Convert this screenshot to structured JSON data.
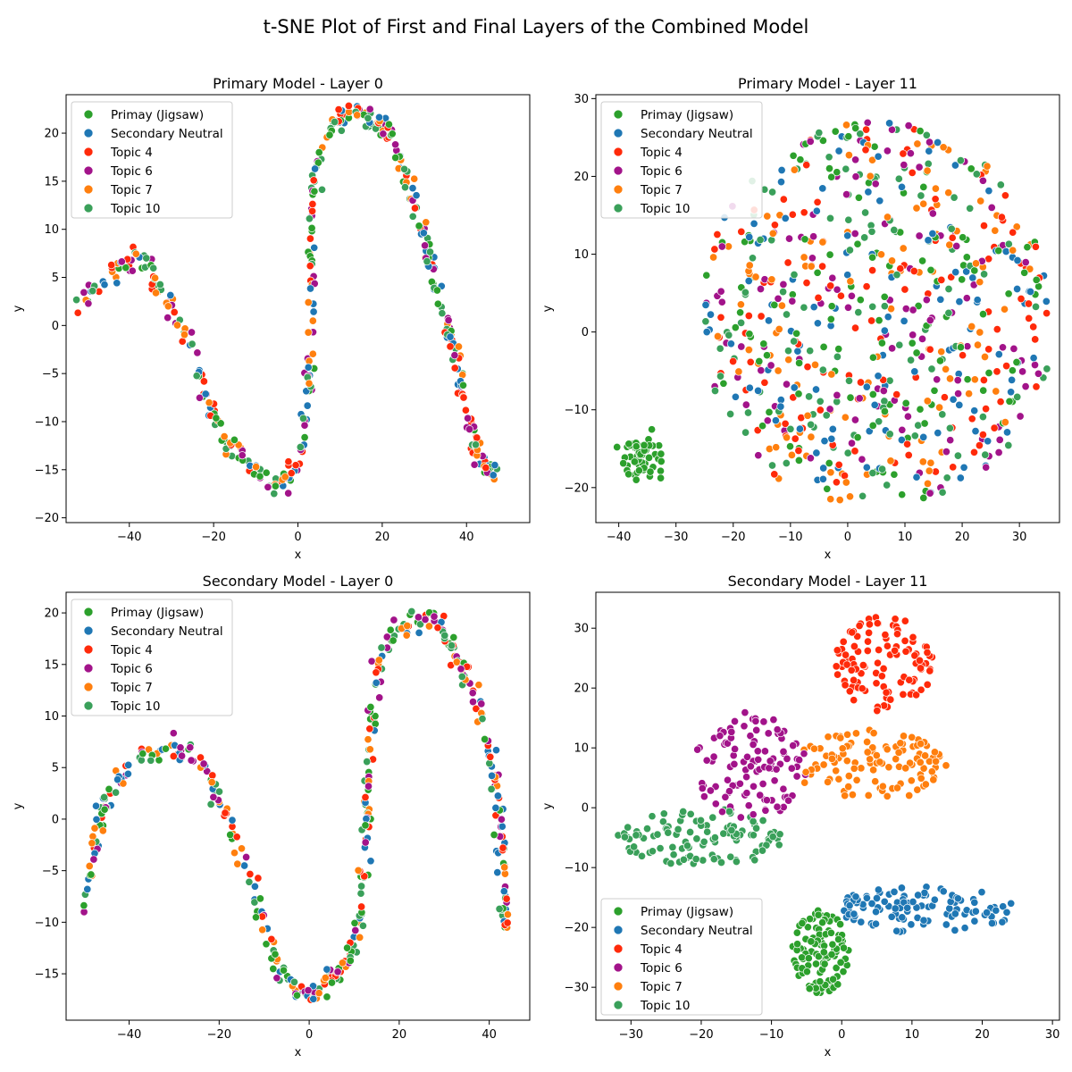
{
  "figure": {
    "title": "t-SNE Plot of First and Final Layers of the Combined Model"
  },
  "legend_entries": [
    {
      "name": "Primay (Jigsaw)",
      "color": "#2ca02c"
    },
    {
      "name": "Secondary Neutral",
      "color": "#1f77b4"
    },
    {
      "name": "Topic 4",
      "color": "#ff2a0a"
    },
    {
      "name": "Topic 6",
      "color": "#a2138a"
    },
    {
      "name": "Topic 7",
      "color": "#ff7f0e"
    },
    {
      "name": "Topic 10",
      "color": "#3aa05a"
    }
  ],
  "chart_data": [
    {
      "type": "scatter",
      "title": "Primary Model - Layer 0",
      "xlabel": "x",
      "ylabel": "y",
      "xlim": [
        -55,
        55
      ],
      "ylim": [
        -20.5,
        24
      ],
      "xticks": [
        -40,
        -20,
        0,
        20,
        40
      ],
      "yticks": [
        -20,
        -15,
        -10,
        -5,
        0,
        5,
        10,
        15,
        20
      ],
      "legend_position": "upper-left",
      "curve": [
        [
          -52,
          2.5
        ],
        [
          -46,
          4.5
        ],
        [
          -41,
          6.5
        ],
        [
          -38,
          7.3
        ],
        [
          -35,
          5.8
        ],
        [
          -32,
          3.5
        ],
        [
          -29,
          1
        ],
        [
          -26,
          -1.5
        ],
        [
          -23,
          -6
        ],
        [
          -20,
          -9.5
        ],
        [
          -17,
          -12
        ],
        [
          -14,
          -13.5
        ],
        [
          -10,
          -15
        ],
        [
          -6,
          -16.2
        ],
        [
          -3,
          -16
        ],
        [
          0,
          -14.5
        ],
        [
          1.5,
          -11
        ],
        [
          2.5,
          -6
        ],
        [
          3,
          0
        ],
        [
          3.3,
          6
        ],
        [
          3.5,
          12
        ],
        [
          4.5,
          16
        ],
        [
          6.5,
          19.5
        ],
        [
          10,
          21.3
        ],
        [
          14,
          22.2
        ],
        [
          18,
          21.5
        ],
        [
          21,
          20.3
        ],
        [
          23.5,
          18
        ],
        [
          26,
          15
        ],
        [
          29,
          10.5
        ],
        [
          31,
          8
        ],
        [
          32,
          5
        ],
        [
          35,
          0.5
        ],
        [
          36,
          -1
        ],
        [
          37.5,
          -4
        ],
        [
          39,
          -7
        ],
        [
          41,
          -10.5
        ],
        [
          43,
          -13.5
        ],
        [
          45,
          -15
        ],
        [
          47,
          -15.1
        ]
      ],
      "series_mix": "all six categories interleaved along a single curve",
      "points_per_series": 70,
      "spread": 0.55
    },
    {
      "type": "scatter",
      "title": "Primary Model - Layer 11",
      "xlabel": "x",
      "ylabel": "y",
      "xlim": [
        -44,
        37
      ],
      "ylim": [
        -24.5,
        30.5
      ],
      "xticks": [
        -40,
        -30,
        -20,
        -10,
        0,
        10,
        20,
        30
      ],
      "yticks": [
        -20,
        -10,
        0,
        10,
        20,
        30
      ],
      "legend_position": "upper-left",
      "main_cloud": {
        "center": [
          5,
          2
        ],
        "x_range": [
          -25,
          35
        ],
        "y_range": [
          -22,
          28
        ]
      },
      "isolated_cluster": {
        "series": "Primay (Jigsaw)",
        "center": [
          -36,
          -16
        ],
        "radius": [
          4,
          3
        ]
      },
      "points_per_series": 120
    },
    {
      "type": "scatter",
      "title": "Secondary Model - Layer 0",
      "xlabel": "x",
      "ylabel": "y",
      "xlim": [
        -54,
        49
      ],
      "ylim": [
        -19.5,
        22
      ],
      "xticks": [
        -40,
        -20,
        0,
        20,
        40
      ],
      "yticks": [
        -15,
        -10,
        -5,
        0,
        5,
        10,
        15,
        20
      ],
      "legend_position": "upper-left",
      "curve": [
        [
          -50,
          -8.5
        ],
        [
          -48,
          -4
        ],
        [
          -46,
          1
        ],
        [
          -44,
          3
        ],
        [
          -40,
          5
        ],
        [
          -35,
          6.5
        ],
        [
          -30,
          7
        ],
        [
          -26,
          6.5
        ],
        [
          -23,
          4.5
        ],
        [
          -20,
          2
        ],
        [
          -17,
          -1
        ],
        [
          -14,
          -5
        ],
        [
          -11,
          -9
        ],
        [
          -8,
          -13.5
        ],
        [
          -5,
          -15.5
        ],
        [
          -2,
          -16.8
        ],
        [
          1,
          -17
        ],
        [
          4,
          -16
        ],
        [
          7,
          -14.5
        ],
        [
          10,
          -12.5
        ],
        [
          11.5,
          -9
        ],
        [
          12.5,
          -3
        ],
        [
          13,
          3
        ],
        [
          13.5,
          8
        ],
        [
          14.5,
          12.5
        ],
        [
          16,
          15.5
        ],
        [
          19,
          18
        ],
        [
          22,
          19
        ],
        [
          26,
          19.5
        ],
        [
          28.5,
          19.2
        ],
        [
          31,
          17.5
        ],
        [
          33.5,
          15
        ],
        [
          35.5,
          13.5
        ],
        [
          37.5,
          11.5
        ],
        [
          39.5,
          8
        ],
        [
          41,
          4
        ],
        [
          42,
          1.5
        ],
        [
          43,
          -3
        ],
        [
          43.3,
          -8
        ],
        [
          43,
          -13
        ]
      ],
      "series_mix": "all six categories interleaved along a single curve",
      "points_per_series": 70,
      "spread": 0.6
    },
    {
      "type": "scatter",
      "title": "Secondary Model - Layer 11",
      "xlabel": "x",
      "ylabel": "y",
      "xlim": [
        -35,
        31
      ],
      "ylim": [
        -35.5,
        36
      ],
      "xticks": [
        -30,
        -20,
        -10,
        0,
        10,
        20,
        30
      ],
      "yticks": [
        -30,
        -20,
        -10,
        0,
        10,
        20,
        30
      ],
      "legend_position": "lower-left",
      "clusters": [
        {
          "series": "Topic 4",
          "center": [
            6,
            24
          ],
          "radius": [
            7,
            8
          ]
        },
        {
          "series": "Topic 6",
          "center": [
            -13,
            7
          ],
          "radius": [
            8,
            9
          ]
        },
        {
          "series": "Topic 7",
          "center": [
            4,
            7
          ],
          "radius": [
            11,
            6
          ]
        },
        {
          "series": "Secondary Neutral",
          "center": [
            12,
            -17
          ],
          "radius": [
            13,
            4
          ]
        },
        {
          "series": "Primay (Jigsaw)",
          "center": [
            -3,
            -24
          ],
          "radius": [
            4,
            7
          ]
        },
        {
          "series": "Topic 10",
          "center": [
            -20,
            -5
          ],
          "radius": [
            12,
            5
          ]
        }
      ],
      "points_per_series": 110
    }
  ]
}
